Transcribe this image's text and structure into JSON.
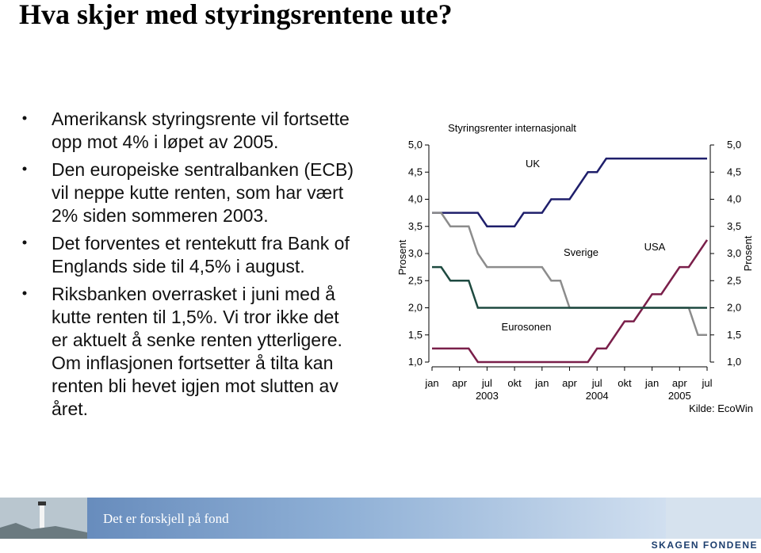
{
  "header": {
    "title": "Hva skjer med styringsrentene ute?"
  },
  "bullets": [
    [
      "Amerikansk styringsrente vil fortsette",
      "opp mot 4% i løpet av 2005."
    ],
    [
      "Den europeiske sentralbanken (ECB)",
      "vil neppe kutte renten, som har vært",
      "2% siden sommeren 2003."
    ],
    [
      "Det forventes et rentekutt fra Bank of",
      "Englands side til 4,5% i august."
    ],
    [
      "Riksbanken overrasket i juni med å",
      "kutte renten til 1,5%. Vi tror ikke det",
      "er aktuelt å senke renten ytterligere.",
      "Om inflasjonen fortsetter å tilta kan",
      "renten bli hevet igjen mot slutten av",
      "året."
    ]
  ],
  "footer": {
    "banner": "Det er forskjell på fond",
    "logo": "SKAGEN FONDENE"
  },
  "chart_data": {
    "type": "line",
    "title": "Styringsrenter internasjonalt",
    "ylabel": "Prosent",
    "y2label": "Prosent",
    "source": "Kilde: EcoWin",
    "x": [
      "2003-01",
      "2003-02",
      "2003-03",
      "2003-04",
      "2003-05",
      "2003-06",
      "2003-07",
      "2003-08",
      "2003-09",
      "2003-10",
      "2003-11",
      "2003-12",
      "2004-01",
      "2004-02",
      "2004-03",
      "2004-04",
      "2004-05",
      "2004-06",
      "2004-07",
      "2004-08",
      "2004-09",
      "2004-10",
      "2004-11",
      "2004-12",
      "2005-01",
      "2005-02",
      "2005-03",
      "2005-04",
      "2005-05",
      "2005-06",
      "2005-07"
    ],
    "xticks": [
      {
        "value": "2003-01",
        "label": "jan"
      },
      {
        "value": "2003-04",
        "label": "apr"
      },
      {
        "value": "2003-07",
        "label": "jul"
      },
      {
        "value": "2003-10",
        "label": "okt"
      },
      {
        "value": "2004-01",
        "label": "jan"
      },
      {
        "value": "2004-04",
        "label": "apr"
      },
      {
        "value": "2004-07",
        "label": "jul"
      },
      {
        "value": "2004-10",
        "label": "okt"
      },
      {
        "value": "2005-01",
        "label": "jan"
      },
      {
        "value": "2005-04",
        "label": "apr"
      },
      {
        "value": "2005-07",
        "label": "jul"
      }
    ],
    "x_group_labels": [
      {
        "value": "2003-07",
        "label": "2003"
      },
      {
        "value": "2004-07",
        "label": "2004"
      },
      {
        "value": "2005-04",
        "label": "2005"
      }
    ],
    "ylim": [
      1.0,
      5.0
    ],
    "yticks": [
      {
        "value": 1.0,
        "label": "1,0"
      },
      {
        "value": 1.5,
        "label": "1,5"
      },
      {
        "value": 2.0,
        "label": "2,0"
      },
      {
        "value": 2.5,
        "label": "2,5"
      },
      {
        "value": 3.0,
        "label": "3,0"
      },
      {
        "value": 3.5,
        "label": "3,5"
      },
      {
        "value": 4.0,
        "label": "4,0"
      },
      {
        "value": 4.5,
        "label": "4,5"
      },
      {
        "value": 5.0,
        "label": "5,0"
      }
    ],
    "series": [
      {
        "name": "UK",
        "color": "#1f1f6b",
        "values": [
          3.75,
          3.75,
          3.75,
          3.75,
          3.75,
          3.75,
          3.5,
          3.5,
          3.5,
          3.5,
          3.75,
          3.75,
          3.75,
          4.0,
          4.0,
          4.0,
          4.25,
          4.5,
          4.5,
          4.75,
          4.75,
          4.75,
          4.75,
          4.75,
          4.75,
          4.75,
          4.75,
          4.75,
          4.75,
          4.75,
          4.75
        ]
      },
      {
        "name": "Sverige",
        "color": "#8c8c8c",
        "values": [
          3.75,
          3.75,
          3.5,
          3.5,
          3.5,
          3.0,
          2.75,
          2.75,
          2.75,
          2.75,
          2.75,
          2.75,
          2.75,
          2.5,
          2.5,
          2.0,
          2.0,
          2.0,
          2.0,
          2.0,
          2.0,
          2.0,
          2.0,
          2.0,
          2.0,
          2.0,
          2.0,
          2.0,
          2.0,
          1.5,
          1.5
        ]
      },
      {
        "name": "USA",
        "color": "#7a1f4a",
        "values": [
          1.25,
          1.25,
          1.25,
          1.25,
          1.25,
          1.0,
          1.0,
          1.0,
          1.0,
          1.0,
          1.0,
          1.0,
          1.0,
          1.0,
          1.0,
          1.0,
          1.0,
          1.0,
          1.25,
          1.25,
          1.5,
          1.75,
          1.75,
          2.0,
          2.25,
          2.25,
          2.5,
          2.75,
          2.75,
          3.0,
          3.25
        ]
      },
      {
        "name": "Eurosonen",
        "color": "#1e4a40",
        "values": [
          2.75,
          2.75,
          2.5,
          2.5,
          2.5,
          2.0,
          2.0,
          2.0,
          2.0,
          2.0,
          2.0,
          2.0,
          2.0,
          2.0,
          2.0,
          2.0,
          2.0,
          2.0,
          2.0,
          2.0,
          2.0,
          2.0,
          2.0,
          2.0,
          2.0,
          2.0,
          2.0,
          2.0,
          2.0,
          2.0,
          2.0
        ]
      }
    ]
  }
}
